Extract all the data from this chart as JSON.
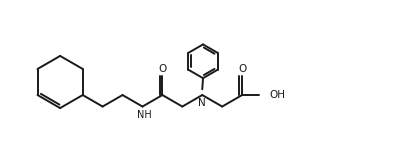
{
  "bg_color": "#ffffff",
  "line_color": "#1a1a1a",
  "line_width": 1.4,
  "figsize": [
    4.04,
    1.64
  ],
  "dpi": 100,
  "xlim": [
    0,
    10.5
  ],
  "ylim": [
    0,
    4.1
  ]
}
